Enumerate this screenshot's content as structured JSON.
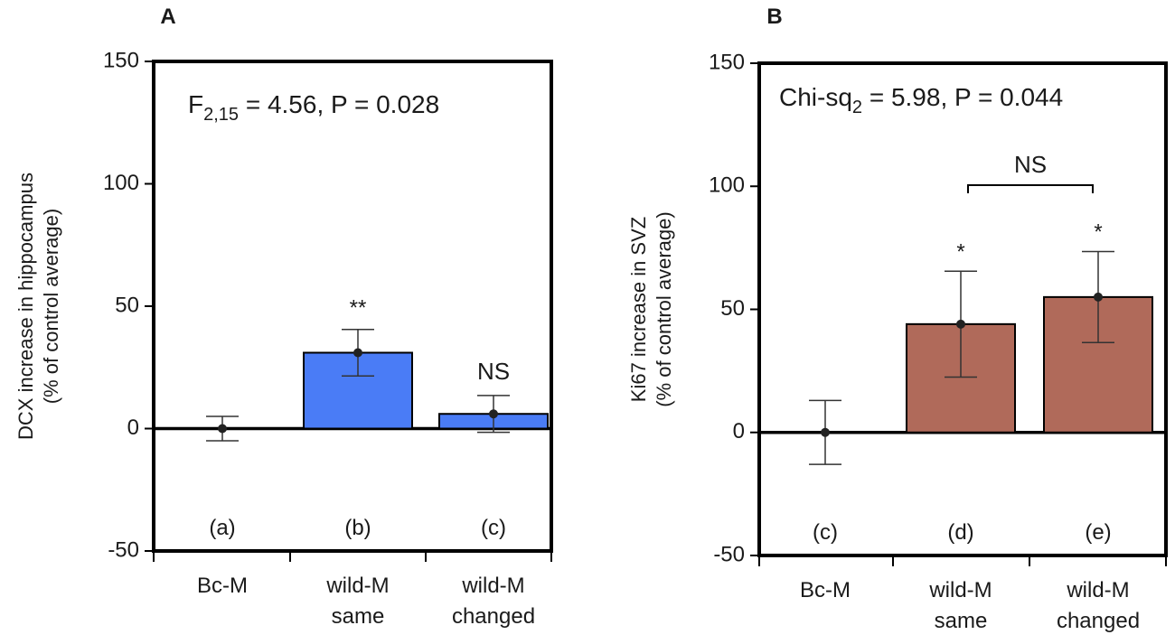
{
  "chart_data": [
    {
      "type": "bar",
      "panel_label": "A",
      "title": "",
      "xlabel": "",
      "ylabel_line1": "DCX increase in hippocampus",
      "ylabel_line2": "(% of control average)",
      "ylim": [
        -50,
        150
      ],
      "yticks": [
        "150",
        "100",
        "50",
        "0",
        "-50"
      ],
      "ytick_values": [
        150,
        100,
        50,
        0,
        -50
      ],
      "categories": [
        {
          "line1": "Bc-M",
          "line2": ""
        },
        {
          "line1": "wild-M",
          "line2": "same"
        },
        {
          "line1": "wild-M",
          "line2": "changed"
        }
      ],
      "group_labels": [
        "(a)",
        "(b)",
        "(c)"
      ],
      "values": [
        0,
        31,
        6
      ],
      "errors": [
        5,
        9.5,
        7.5
      ],
      "significance": [
        "",
        "**",
        "NS"
      ],
      "stat_main": "F",
      "stat_sub": "2,15",
      "stat_rest": " = 4.56, P = 0.028",
      "bar_color": "#4a7cf6"
    },
    {
      "type": "bar",
      "panel_label": "B",
      "title": "",
      "xlabel": "",
      "ylabel_line1": "Ki67 increase in SVZ",
      "ylabel_line2": "(% of control average)",
      "ylim": [
        -50,
        150
      ],
      "yticks": [
        "150",
        "100",
        "50",
        "0",
        "-50"
      ],
      "ytick_values": [
        150,
        100,
        50,
        0,
        -50
      ],
      "categories": [
        {
          "line1": "Bc-M",
          "line2": ""
        },
        {
          "line1": "wild-M",
          "line2": "same"
        },
        {
          "line1": "wild-M",
          "line2": "changed"
        }
      ],
      "group_labels": [
        "(c)",
        "(d)",
        "(e)"
      ],
      "values": [
        0,
        44,
        55
      ],
      "errors": [
        13,
        21.5,
        18.5
      ],
      "significance": [
        "",
        "*",
        "*"
      ],
      "bracket_label": "NS",
      "stat_main": "Chi-sq",
      "stat_sub": "2",
      "stat_rest": " = 5.98, P = 0.044",
      "bar_color": "#b06a5a"
    }
  ]
}
